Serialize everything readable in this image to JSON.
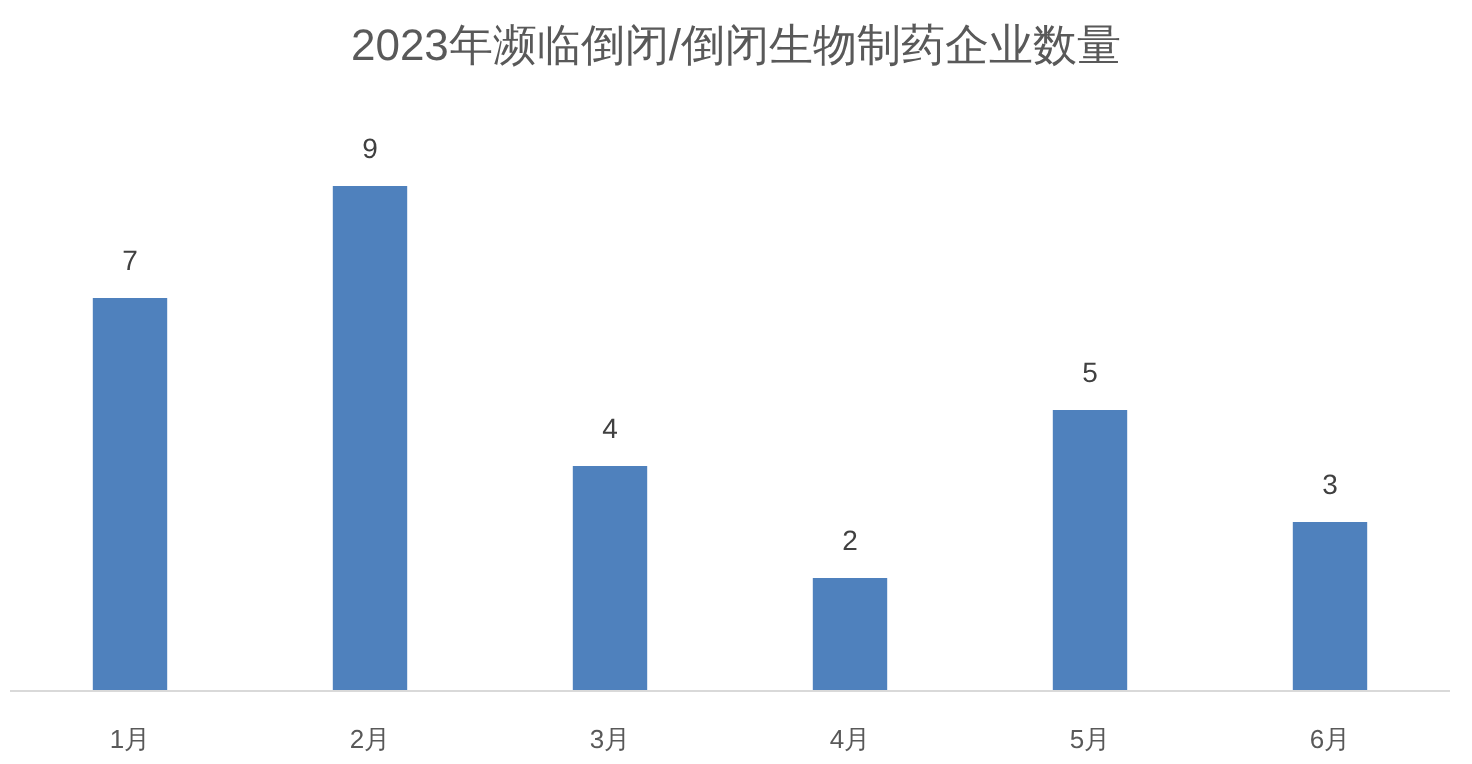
{
  "chart_data": {
    "type": "bar",
    "title": "2023年濒临倒闭/倒闭生物制药企业数量",
    "categories": [
      "1月",
      "2月",
      "3月",
      "4月",
      "5月",
      "6月"
    ],
    "values": [
      7,
      9,
      4,
      2,
      5,
      3
    ],
    "color": "#4f81bd",
    "data_labels": true
  }
}
